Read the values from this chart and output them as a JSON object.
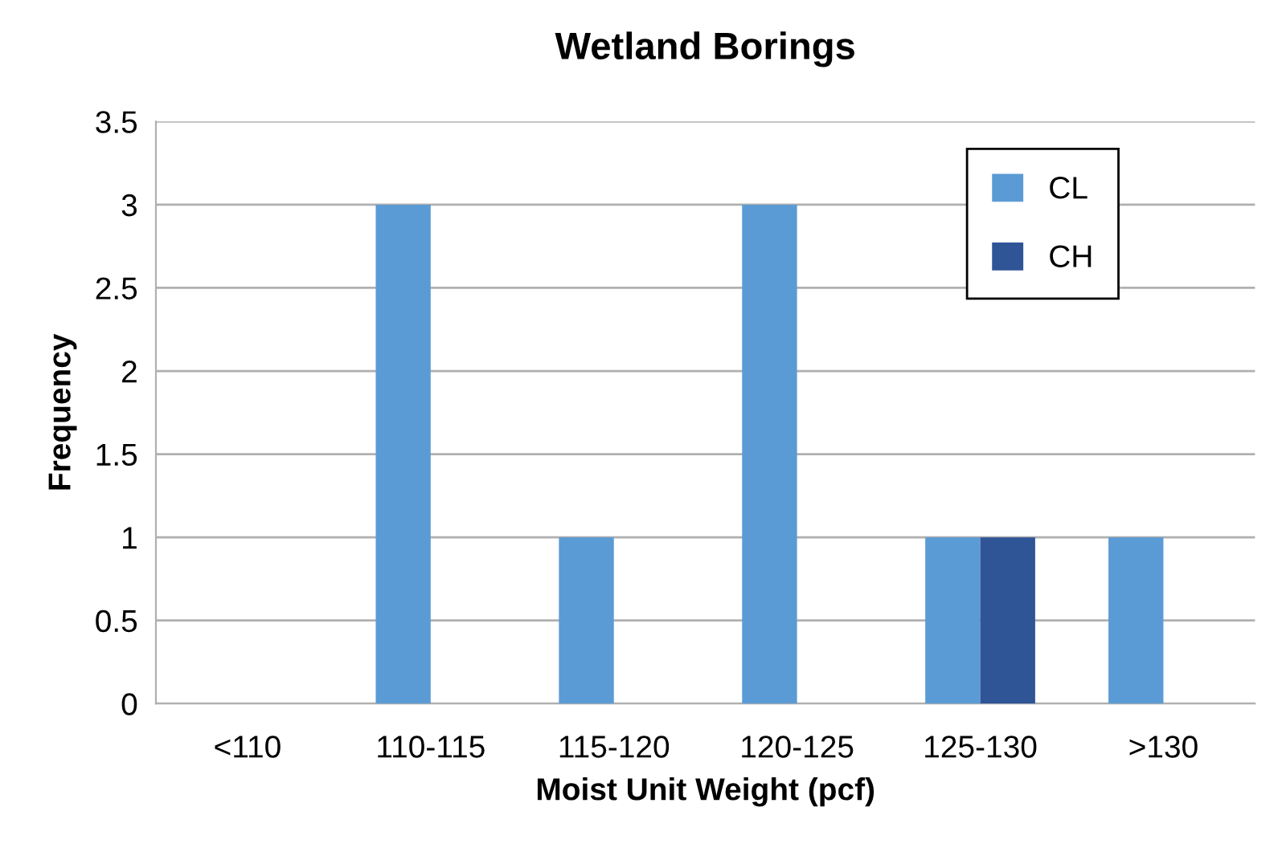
{
  "chart_data": {
    "type": "bar",
    "title": "Wetland Borings",
    "xlabel": "Moist Unit Weight (pcf)",
    "ylabel": "Frequency",
    "categories": [
      "<110",
      "110-115",
      "115-120",
      "120-125",
      "125-130",
      ">130"
    ],
    "series": [
      {
        "name": "CL",
        "color": "#5b9bd5",
        "values": [
          0,
          3,
          1,
          3,
          1,
          1
        ]
      },
      {
        "name": "CH",
        "color": "#2f5597",
        "values": [
          0,
          0,
          0,
          0,
          1,
          0
        ]
      }
    ],
    "ylim": [
      0,
      3.5
    ],
    "yticks": [
      0,
      0.5,
      1,
      1.5,
      2,
      2.5,
      3,
      3.5
    ],
    "grid": "y",
    "legend": "top right"
  }
}
